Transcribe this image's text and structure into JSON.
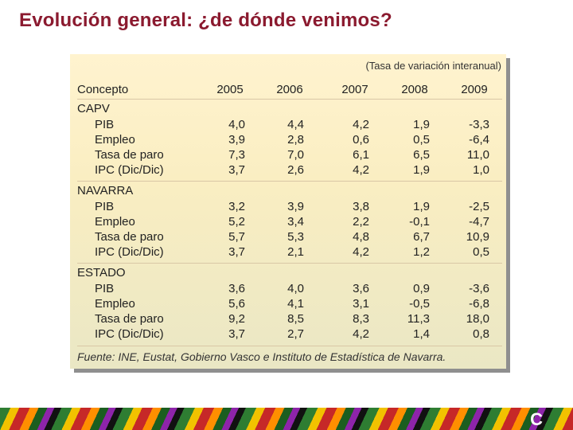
{
  "title": "Evolución general: ¿de dónde venimos?",
  "table": {
    "subtitle": "(Tasa de variación interanual)",
    "concept_header": "Concepto",
    "years": [
      "2005",
      "2006",
      "2007",
      "2008",
      "2009"
    ],
    "groups": [
      {
        "name": "CAPV",
        "rows": [
          {
            "label": "PIB",
            "values": [
              "4,0",
              "4,4",
              "4,2",
              "1,9",
              "-3,3"
            ]
          },
          {
            "label": "Empleo",
            "values": [
              "3,9",
              "2,8",
              "0,6",
              "0,5",
              "-6,4"
            ]
          },
          {
            "label": "Tasa de paro",
            "values": [
              "7,3",
              "7,0",
              "6,1",
              "6,5",
              "11,0"
            ]
          },
          {
            "label": "IPC (Dic/Dic)",
            "values": [
              "3,7",
              "2,6",
              "4,2",
              "1,9",
              "1,0"
            ]
          }
        ]
      },
      {
        "name": "NAVARRA",
        "rows": [
          {
            "label": "PIB",
            "values": [
              "3,2",
              "3,9",
              "3,8",
              "1,9",
              "-2,5"
            ]
          },
          {
            "label": "Empleo",
            "values": [
              "5,2",
              "3,4",
              "2,2",
              "-0,1",
              "-4,7"
            ]
          },
          {
            "label": "Tasa de paro",
            "values": [
              "5,7",
              "5,3",
              "4,8",
              "6,7",
              "10,9"
            ]
          },
          {
            "label": "IPC (Dic/Dic)",
            "values": [
              "3,7",
              "2,1",
              "4,2",
              "1,2",
              "0,5"
            ]
          }
        ]
      },
      {
        "name": "ESTADO",
        "rows": [
          {
            "label": "PIB",
            "values": [
              "3,6",
              "4,0",
              "3,6",
              "0,9",
              "-3,6"
            ]
          },
          {
            "label": "Empleo",
            "values": [
              "5,6",
              "4,1",
              "3,1",
              "-0,5",
              "-6,8"
            ]
          },
          {
            "label": "Tasa de paro",
            "values": [
              "9,2",
              "8,5",
              "8,3",
              "11,3",
              "18,0"
            ]
          },
          {
            "label": "IPC (Dic/Dic)",
            "values": [
              "3,7",
              "2,7",
              "4,2",
              "1,4",
              "0,8"
            ]
          }
        ]
      }
    ],
    "footer": "Fuente: INE, Eustat, Gobierno Vasco e Instituto de Estadística de Navarra."
  }
}
